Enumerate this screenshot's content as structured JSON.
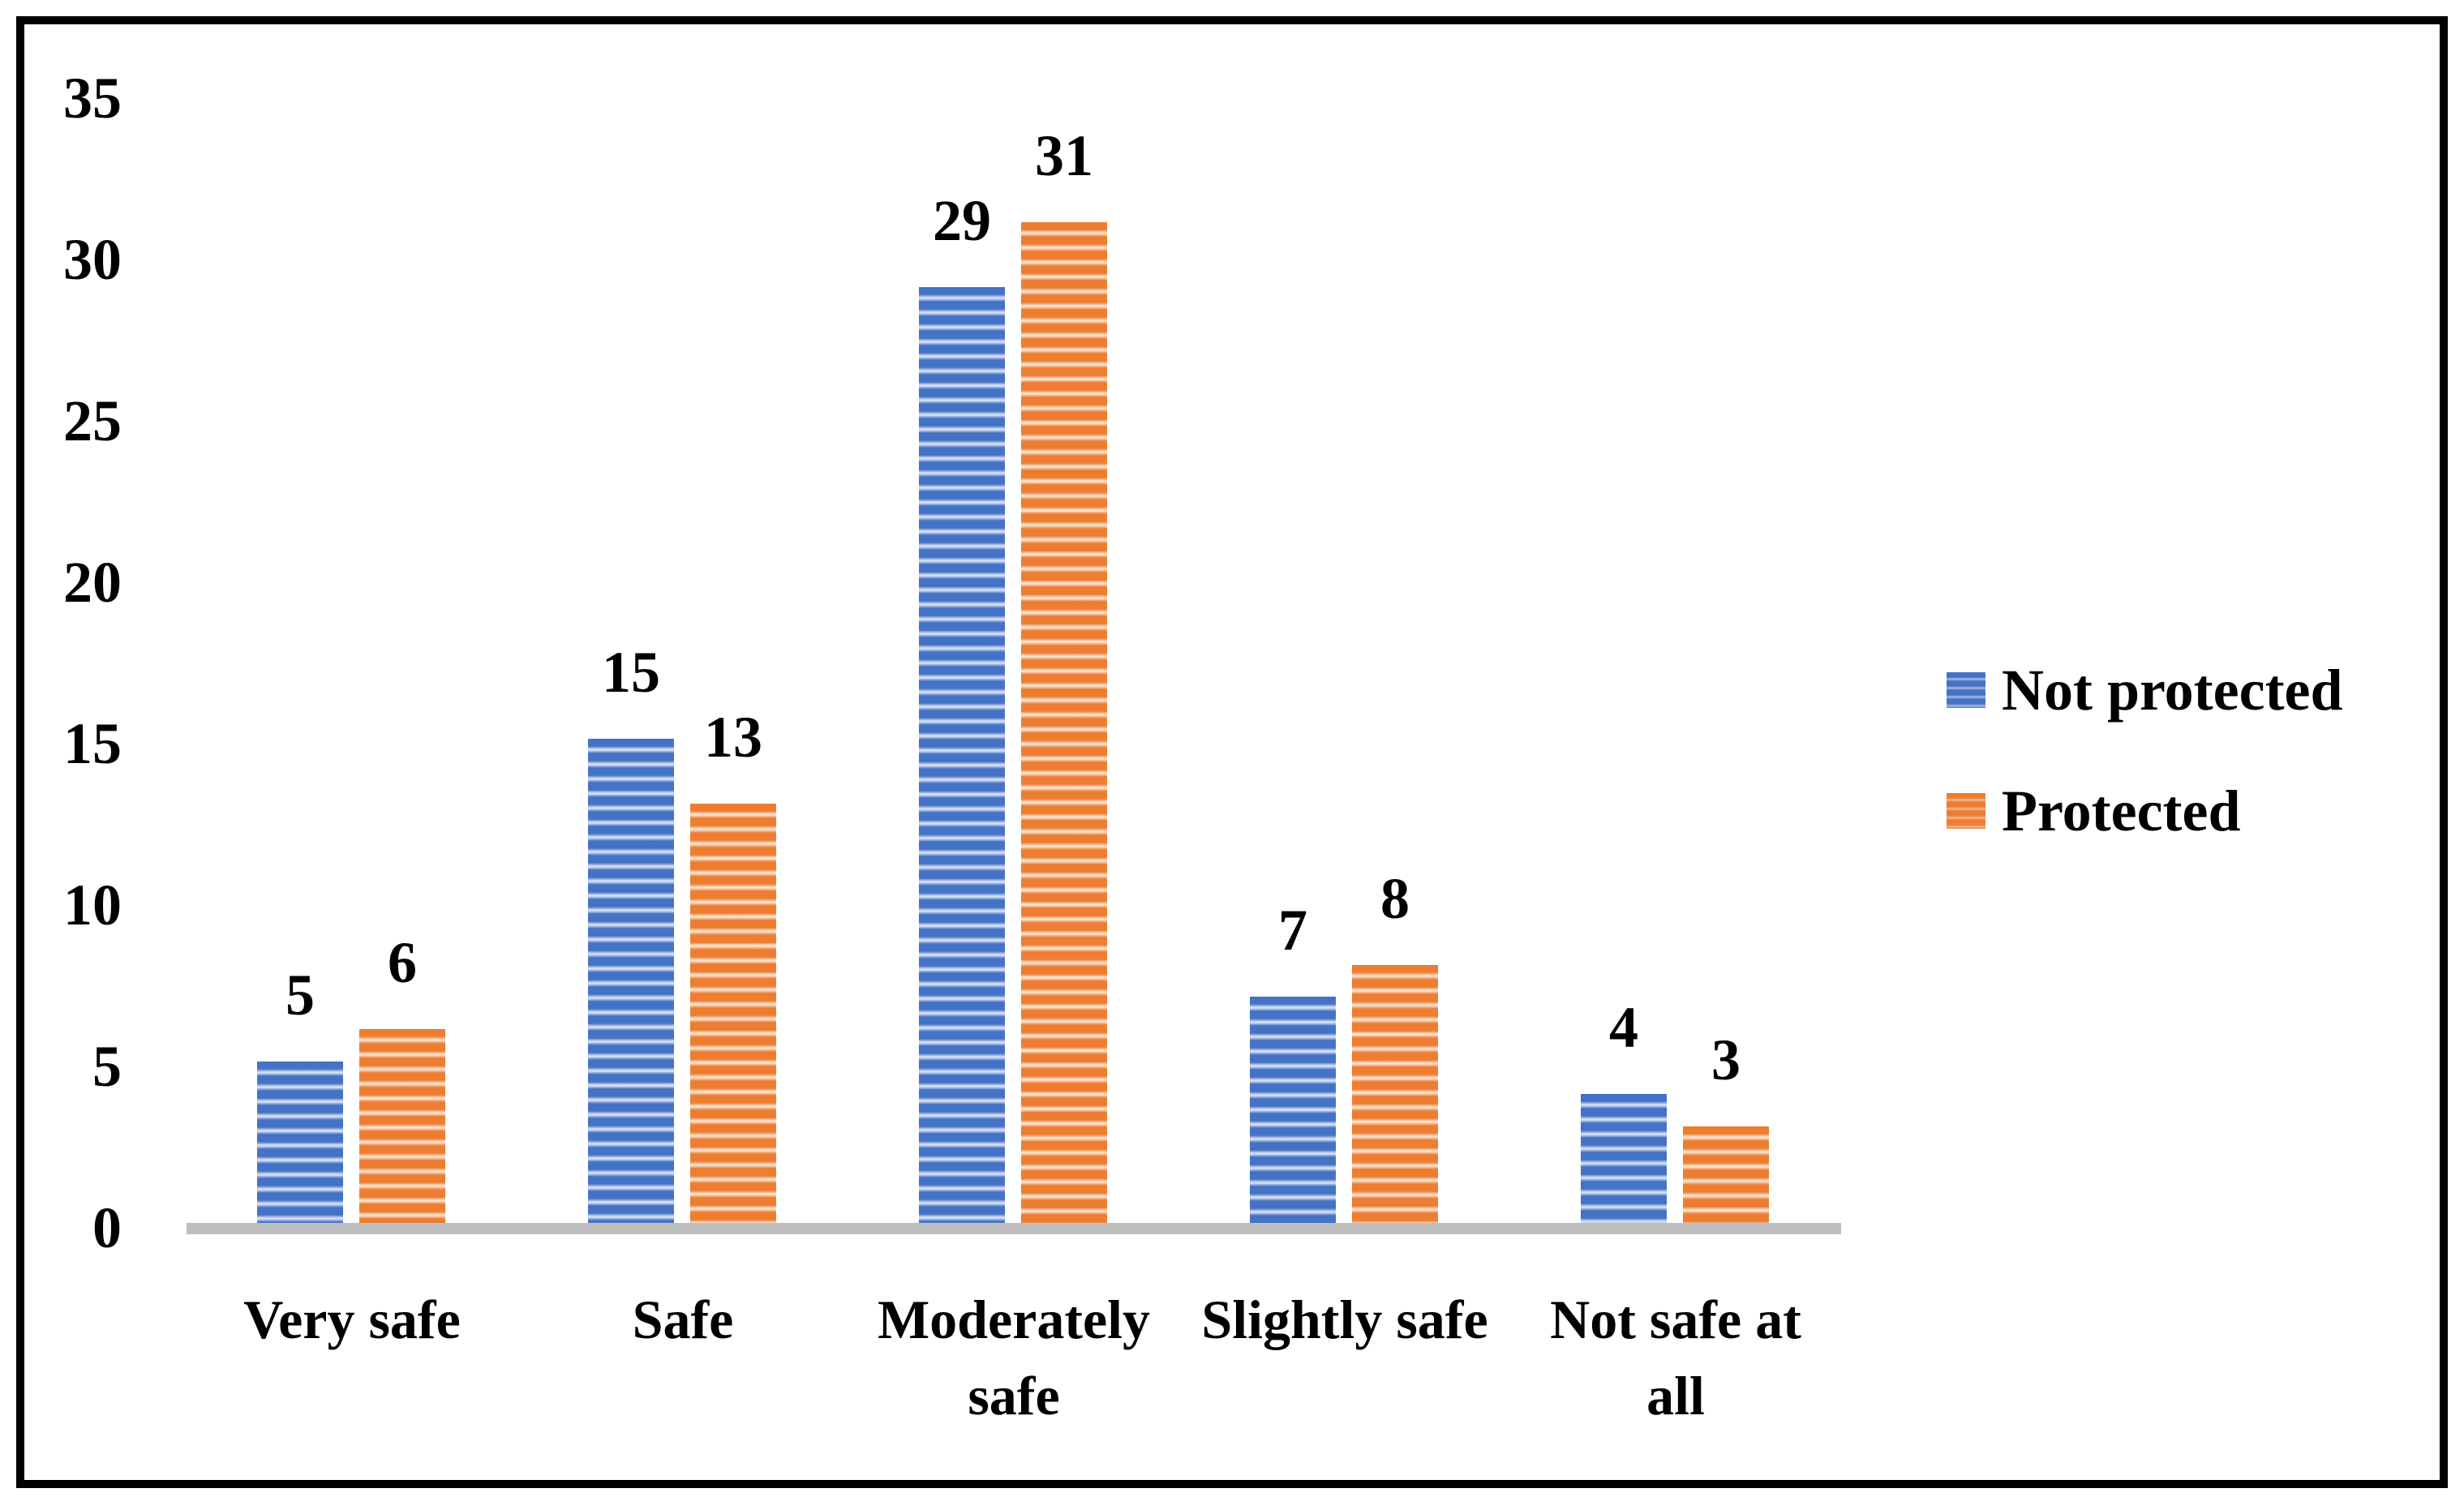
{
  "chart_data": {
    "type": "bar",
    "title": "",
    "xlabel": "",
    "ylabel": "",
    "categories": [
      "Very safe",
      "Safe",
      "Moderately safe",
      "Slightly safe",
      "Not safe at all"
    ],
    "series": [
      {
        "name": "Not protected",
        "values": [
          5,
          15,
          29,
          7,
          4
        ],
        "color": "#4472C4",
        "color_light": "#D7E0F3",
        "swatch_light": "#9EB3E0",
        "pattern": "horizontal-stripes"
      },
      {
        "name": "Protected",
        "values": [
          6,
          13,
          31,
          8,
          3
        ],
        "color": "#ED7D31",
        "color_light": "#FBE2CF",
        "swatch_light": "#F3B08A",
        "pattern": "horizontal-stripes"
      }
    ],
    "data_labels": [
      [
        "5",
        "15",
        "29",
        "7",
        "4"
      ],
      [
        "6",
        "13",
        "31",
        "8",
        "3"
      ]
    ],
    "yticks": [
      "0",
      "5",
      "10",
      "15",
      "20",
      "25",
      "30",
      "35"
    ],
    "ylim": [
      0,
      35
    ],
    "grid": false,
    "legend_position": "right",
    "axis_line_color": "#BEBEBE",
    "frame_border_color": "#000000",
    "text_color": "#000000"
  }
}
